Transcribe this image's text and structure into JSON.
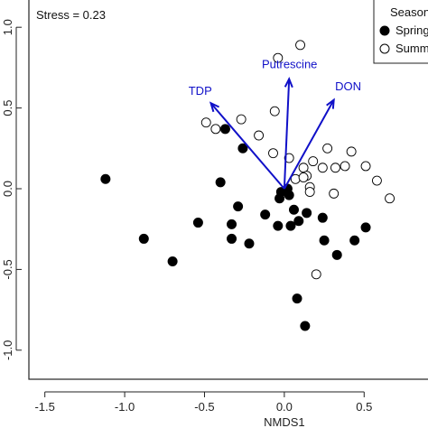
{
  "chart_data": {
    "type": "scatter",
    "title": "",
    "xlabel": "NMDS1",
    "ylabel": "",
    "xlim": [
      -1.6,
      0.9
    ],
    "ylim": [
      -1.18,
      1.18
    ],
    "xticks": [
      -1.5,
      -1.0,
      -0.5,
      0.0,
      0.5
    ],
    "xtick_labels": [
      "-1.5",
      "-1.0",
      "-0.5",
      "0.0",
      "0.5"
    ],
    "yticks": [
      -1.0,
      -0.5,
      0.0,
      0.5,
      1.0
    ],
    "ytick_labels": [
      "-1.0",
      "-0.5",
      "0.0",
      "0.5",
      "1.0"
    ],
    "grid": false,
    "annotation": "Stress = 0.23",
    "legend": {
      "title": "Season",
      "placement": "top-right",
      "entries": [
        "Spring",
        "Summer"
      ]
    },
    "series": [
      {
        "name": "Spring",
        "marker": "filled-circle",
        "color": "#000000",
        "points": [
          [
            -1.12,
            0.06
          ],
          [
            -0.88,
            -0.31
          ],
          [
            -0.7,
            -0.45
          ],
          [
            -0.54,
            -0.21
          ],
          [
            -0.4,
            0.04
          ],
          [
            -0.37,
            0.37
          ],
          [
            -0.33,
            -0.31
          ],
          [
            -0.33,
            -0.22
          ],
          [
            -0.29,
            -0.11
          ],
          [
            -0.26,
            0.25
          ],
          [
            -0.22,
            -0.34
          ],
          [
            -0.12,
            -0.16
          ],
          [
            -0.03,
            -0.06
          ],
          [
            -0.04,
            -0.23
          ],
          [
            -0.02,
            -0.02
          ],
          [
            0.03,
            -0.04
          ],
          [
            0.04,
            -0.23
          ],
          [
            0.06,
            -0.13
          ],
          [
            0.09,
            -0.2
          ],
          [
            0.14,
            -0.15
          ],
          [
            0.24,
            -0.18
          ],
          [
            0.25,
            -0.32
          ],
          [
            0.33,
            -0.41
          ],
          [
            0.44,
            -0.32
          ],
          [
            0.51,
            -0.24
          ],
          [
            0.08,
            -0.68
          ],
          [
            0.13,
            -0.85
          ],
          [
            0.02,
            0.0
          ]
        ]
      },
      {
        "name": "Summer",
        "marker": "open-circle",
        "color": "#000000",
        "points": [
          [
            0.1,
            0.89
          ],
          [
            -0.04,
            0.81
          ],
          [
            -0.06,
            0.48
          ],
          [
            -0.49,
            0.41
          ],
          [
            -0.43,
            0.37
          ],
          [
            -0.27,
            0.43
          ],
          [
            -0.16,
            0.33
          ],
          [
            -0.07,
            0.22
          ],
          [
            0.03,
            0.19
          ],
          [
            0.12,
            0.13
          ],
          [
            0.14,
            0.08
          ],
          [
            0.18,
            0.17
          ],
          [
            0.27,
            0.25
          ],
          [
            0.24,
            0.13
          ],
          [
            0.32,
            0.13
          ],
          [
            0.38,
            0.14
          ],
          [
            0.42,
            0.23
          ],
          [
            0.51,
            0.14
          ],
          [
            0.58,
            0.05
          ],
          [
            0.66,
            -0.06
          ],
          [
            0.07,
            0.06
          ],
          [
            0.12,
            0.07
          ],
          [
            0.16,
            0.01
          ],
          [
            0.16,
            -0.02
          ],
          [
            0.31,
            -0.03
          ],
          [
            0.2,
            -0.53
          ]
        ]
      }
    ],
    "vectors": [
      {
        "label": "TDP",
        "x": -0.46,
        "y": 0.53
      },
      {
        "label": "Putrescine",
        "x": 0.03,
        "y": 0.68
      },
      {
        "label": "DON",
        "x": 0.31,
        "y": 0.55
      }
    ],
    "vector_color": "#1010c8"
  }
}
